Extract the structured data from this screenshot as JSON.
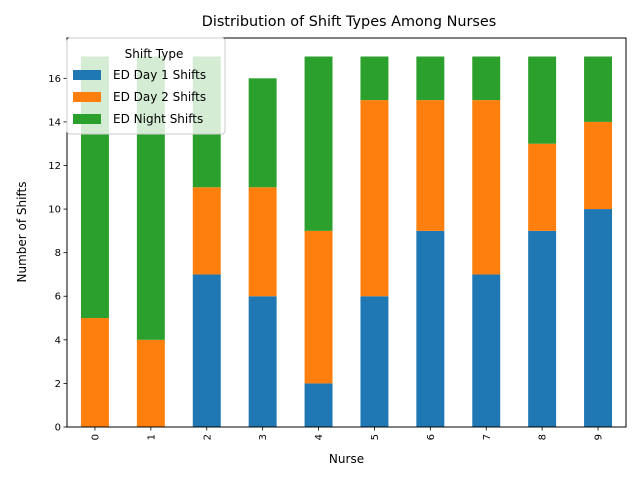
{
  "chart_data": {
    "type": "bar",
    "stacked": true,
    "title": "Distribution of Shift Types Among Nurses",
    "xlabel": "Nurse",
    "ylabel": "Number of Shifts",
    "categories": [
      "0",
      "1",
      "2",
      "3",
      "4",
      "5",
      "6",
      "7",
      "8",
      "9"
    ],
    "series": [
      {
        "name": "ED Day 1 Shifts",
        "color": "#1f77b4",
        "values": [
          0,
          0,
          7,
          6,
          2,
          6,
          9,
          7,
          9,
          10
        ]
      },
      {
        "name": "ED Day 2 Shifts",
        "color": "#ff7f0e",
        "values": [
          5,
          4,
          4,
          5,
          7,
          9,
          6,
          8,
          4,
          4
        ]
      },
      {
        "name": "ED Night Shifts",
        "color": "#2ca02c",
        "values": [
          12,
          13,
          6,
          5,
          8,
          2,
          2,
          2,
          4,
          3
        ]
      }
    ],
    "ylim": [
      0,
      17.85
    ],
    "yticks": [
      0,
      2,
      4,
      6,
      8,
      10,
      12,
      14,
      16
    ],
    "x_tick_rotation": "vertical",
    "grid": false,
    "legend": {
      "title": "Shift Type",
      "placement": "upper-left"
    }
  }
}
